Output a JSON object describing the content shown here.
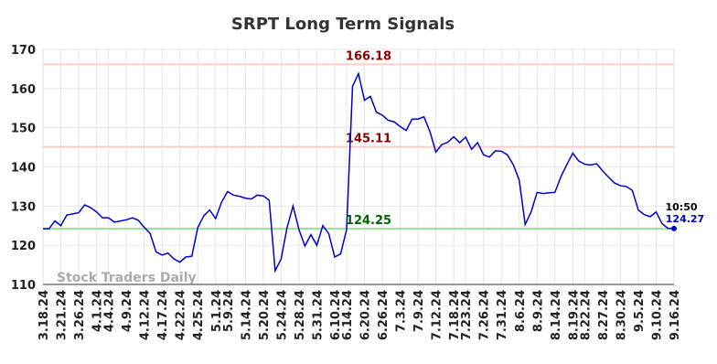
{
  "chart_data": {
    "type": "line",
    "title": "SRPT Long Term Signals",
    "watermark": "Stock Traders Daily",
    "x": [
      0,
      1,
      2,
      3,
      4,
      5,
      6,
      7,
      8,
      9,
      10,
      11,
      12,
      13,
      14,
      15,
      16,
      17,
      18,
      19,
      20,
      21,
      22,
      23,
      24,
      25,
      26,
      27,
      28,
      29,
      30,
      31,
      32,
      33,
      34,
      35,
      36,
      37,
      38,
      39,
      40,
      41,
      42,
      43,
      44,
      45,
      46,
      47,
      48,
      49,
      50,
      51,
      52,
      53,
      54,
      55,
      56,
      57,
      58,
      59,
      60,
      61,
      62,
      63,
      64,
      65,
      66,
      67,
      68,
      69,
      70,
      71,
      72,
      73,
      74,
      75,
      76,
      77,
      78,
      79,
      80,
      81,
      82,
      83,
      84,
      85,
      86,
      87,
      88,
      89,
      90,
      91,
      92,
      93,
      94,
      95,
      96,
      97,
      98,
      99,
      100,
      101,
      102,
      103,
      104,
      105,
      106
    ],
    "xlim": [
      0,
      106
    ],
    "xticks": [
      {
        "value": 0,
        "label": "3.18.24"
      },
      {
        "value": 3,
        "label": "3.21.24"
      },
      {
        "value": 6,
        "label": "3.26.24"
      },
      {
        "value": 9,
        "label": "4.1.24"
      },
      {
        "value": 11,
        "label": "4.4.24"
      },
      {
        "value": 14,
        "label": "4.9.24"
      },
      {
        "value": 17,
        "label": "4.12.24"
      },
      {
        "value": 20,
        "label": "4.17.24"
      },
      {
        "value": 23,
        "label": "4.22.24"
      },
      {
        "value": 26,
        "label": "4.25.24"
      },
      {
        "value": 29,
        "label": "5.1.24"
      },
      {
        "value": 31,
        "label": "5.9.24"
      },
      {
        "value": 34,
        "label": "5.14.24"
      },
      {
        "value": 37,
        "label": "5.20.24"
      },
      {
        "value": 40,
        "label": "5.24.24"
      },
      {
        "value": 43,
        "label": "5.28.24"
      },
      {
        "value": 46,
        "label": "5.31.24"
      },
      {
        "value": 49,
        "label": "6.10.24"
      },
      {
        "value": 51,
        "label": "6.14.24"
      },
      {
        "value": 54,
        "label": "6.20.24"
      },
      {
        "value": 57,
        "label": "6.26.24"
      },
      {
        "value": 60,
        "label": "7.3.24"
      },
      {
        "value": 63,
        "label": "7.9.24"
      },
      {
        "value": 66,
        "label": "7.12.24"
      },
      {
        "value": 69,
        "label": "7.18.24"
      },
      {
        "value": 71,
        "label": "7.23.24"
      },
      {
        "value": 74,
        "label": "7.26.24"
      },
      {
        "value": 77,
        "label": "7.31.24"
      },
      {
        "value": 80,
        "label": "8.6.24"
      },
      {
        "value": 83,
        "label": "8.9.24"
      },
      {
        "value": 86,
        "label": "8.14.24"
      },
      {
        "value": 89,
        "label": "8.19.24"
      },
      {
        "value": 91,
        "label": "8.22.24"
      },
      {
        "value": 94,
        "label": "8.27.24"
      },
      {
        "value": 97,
        "label": "8.30.24"
      },
      {
        "value": 100,
        "label": "9.5.24"
      },
      {
        "value": 103,
        "label": "9.10.24"
      },
      {
        "value": 106,
        "label": "9.16.24"
      }
    ],
    "ylim": [
      110,
      170
    ],
    "yticks": [
      110,
      120,
      130,
      140,
      150,
      160,
      170
    ],
    "grid": true,
    "series": [
      {
        "color": "#0000cc",
        "values": [
          124.2,
          124.2,
          126.2,
          125.0,
          127.7,
          128.0,
          128.3,
          130.3,
          129.6,
          128.5,
          127.0,
          127.0,
          125.9,
          126.2,
          126.5,
          127.0,
          126.4,
          124.6,
          123.0,
          118.3,
          117.5,
          118.0,
          116.5,
          115.7,
          117.0,
          117.2,
          124.5,
          127.5,
          129.0,
          126.8,
          131.0,
          133.7,
          132.8,
          132.5,
          132.0,
          131.8,
          132.8,
          132.6,
          131.5,
          113.5,
          116.5,
          124.5,
          130.0,
          124.0,
          119.8,
          122.7,
          120.0,
          125.0,
          123.0,
          117.0,
          117.8,
          124.0,
          160.6,
          163.8,
          157.0,
          158.0,
          154.0,
          153.2,
          151.9,
          151.5,
          150.3,
          149.3,
          152.2,
          152.2,
          152.8,
          149.0,
          143.8,
          145.7,
          146.3,
          147.7,
          146.2,
          147.6,
          144.5,
          146.2,
          143.1,
          142.5,
          144.1,
          144.0,
          143.1,
          140.6,
          136.6,
          125.3,
          128.5,
          133.5,
          133.2,
          133.4,
          133.5,
          137.5,
          140.6,
          143.5,
          141.5,
          140.7,
          140.5,
          140.8,
          139.0,
          137.4,
          135.9,
          135.2,
          135.0,
          134.0,
          129.0,
          127.8,
          127.3,
          128.5,
          125.5,
          124.3,
          124.27
        ]
      }
    ],
    "hlines": [
      {
        "value": 166.18,
        "color": "#ffcccc",
        "label_color": "#8b0000"
      },
      {
        "value": 145.11,
        "color": "#ffcccc",
        "label_color": "#8b0000"
      },
      {
        "value": 124.25,
        "color": "#99e699",
        "label_color": "#006400"
      }
    ],
    "last_time": "10:50"
  }
}
